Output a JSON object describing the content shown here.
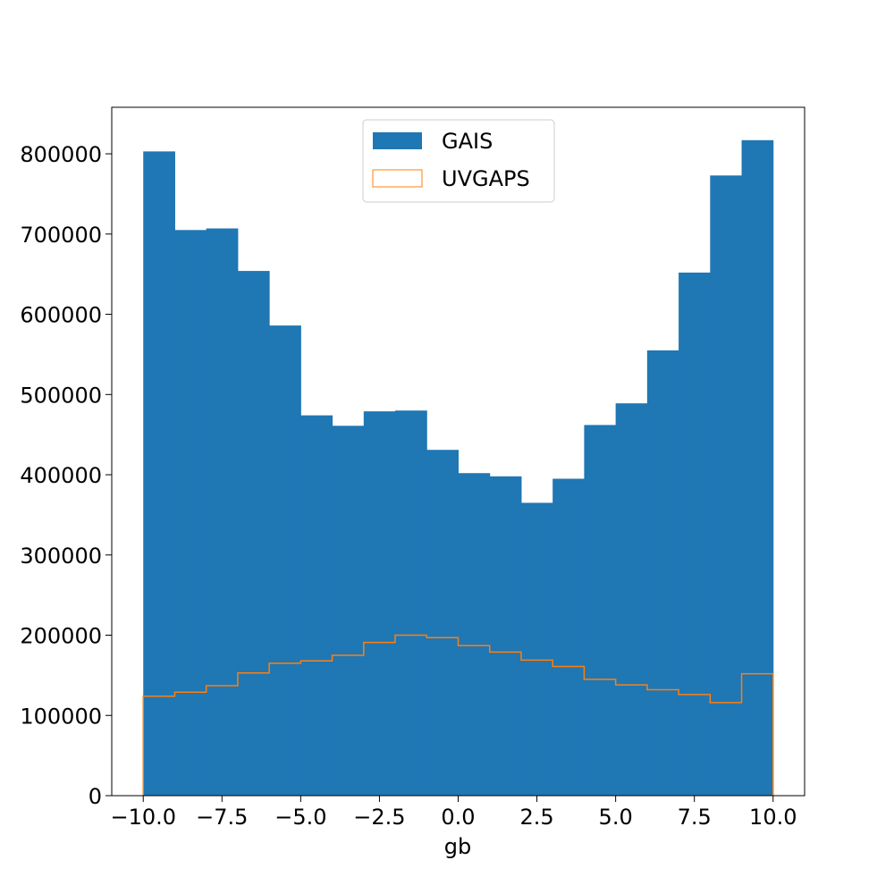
{
  "chart_data": {
    "type": "bar",
    "xlabel": "gb",
    "ylabel": "",
    "xlim": [
      -11.0,
      11.0
    ],
    "ylim": [
      0,
      858000
    ],
    "bin_edges": [
      -10,
      -9,
      -8,
      -7,
      -6,
      -5,
      -4,
      -3,
      -2,
      -1,
      0,
      1,
      2,
      3,
      4,
      5,
      6,
      7,
      8,
      9,
      10
    ],
    "x_ticks": [
      -10.0,
      -7.5,
      -5.0,
      -2.5,
      0.0,
      2.5,
      5.0,
      7.5,
      10.0
    ],
    "x_tick_labels": [
      "−10.0",
      "−7.5",
      "−5.0",
      "−2.5",
      "0.0",
      "2.5",
      "5.0",
      "7.5",
      "10.0"
    ],
    "y_ticks": [
      0,
      100000,
      200000,
      300000,
      400000,
      500000,
      600000,
      700000,
      800000
    ],
    "y_tick_labels": [
      "0",
      "100000",
      "200000",
      "300000",
      "400000",
      "500000",
      "600000",
      "700000",
      "800000"
    ],
    "legend_position": "top-center",
    "series": [
      {
        "name": "GAIS",
        "style": "filled",
        "color": "#1f77b4",
        "values": [
          803000,
          705000,
          707000,
          654000,
          586000,
          474000,
          461000,
          479000,
          480000,
          431000,
          402000,
          398000,
          365000,
          395000,
          462000,
          489000,
          555000,
          652000,
          773000,
          817000
        ]
      },
      {
        "name": "UVGAPS",
        "style": "step",
        "color": "#ff7f0e",
        "values": [
          124000,
          129000,
          137000,
          153000,
          165000,
          168000,
          175000,
          191000,
          200000,
          197000,
          187000,
          179000,
          169000,
          161000,
          145000,
          138000,
          132000,
          126000,
          116000,
          152000
        ]
      }
    ]
  }
}
